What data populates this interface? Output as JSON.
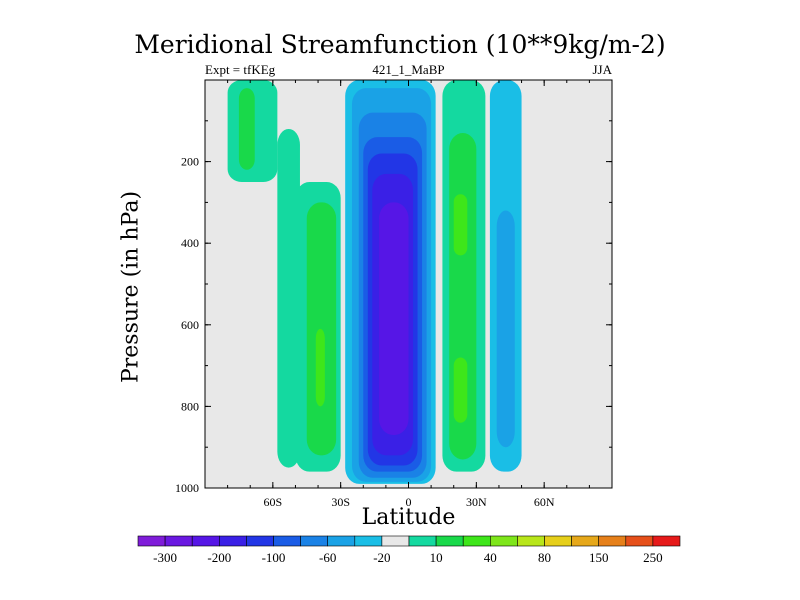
{
  "chart_data": {
    "type": "heatmap",
    "title": "Meridional Streamfunction (10**9kg/m-2)",
    "left_label": "Expt = tfKEg",
    "center_label": "421_1_MaBP",
    "right_label": "JJA",
    "xlabel": "Latitude",
    "ylabel": "Pressure (in hPa)",
    "xlim": [
      -90,
      90
    ],
    "ylim": [
      1000,
      0
    ],
    "x_ticks": [
      -60,
      -30,
      0,
      30,
      60
    ],
    "x_tick_labels": [
      "60S",
      "30S",
      "0",
      "30N",
      "60N"
    ],
    "y_ticks": [
      200,
      400,
      600,
      800,
      1000
    ],
    "y_tick_labels": [
      "200",
      "400",
      "600",
      "800",
      "1000"
    ],
    "background_color": "#e8e8e8",
    "colorbar": {
      "colors": [
        "#7f1cd9",
        "#6a18e1",
        "#5616e6",
        "#3a20e6",
        "#2236e6",
        "#1a5ce6",
        "#1a82e6",
        "#1aa2e6",
        "#1abee6",
        "#e8e8e8",
        "#14d9a0",
        "#19d94a",
        "#3ee61a",
        "#7ee61a",
        "#b8e61a",
        "#e6cf1a",
        "#e6a81a",
        "#e6801a",
        "#e6501a",
        "#e61a1a"
      ],
      "labels": [
        {
          "text": "-300",
          "index": 1
        },
        {
          "text": "-200",
          "index": 3
        },
        {
          "text": "-100",
          "index": 5
        },
        {
          "text": "-60",
          "index": 7
        },
        {
          "text": "-20",
          "index": 9
        },
        {
          "text": "10",
          "index": 11
        },
        {
          "text": "40",
          "index": 13
        },
        {
          "text": "80",
          "index": 15
        },
        {
          "text": "150",
          "index": 17
        },
        {
          "text": "250",
          "index": 19
        }
      ]
    },
    "cells": [
      {
        "lat": [
          -80,
          -58
        ],
        "p": [
          0,
          250
        ],
        "value": 15,
        "color": "#14d9a0"
      },
      {
        "lat": [
          -75,
          -68
        ],
        "p": [
          20,
          220
        ],
        "value": 25,
        "color": "#19d94a"
      },
      {
        "lat": [
          -58,
          -48
        ],
        "p": [
          120,
          950
        ],
        "value": 15,
        "color": "#14d9a0"
      },
      {
        "lat": [
          -50,
          -30
        ],
        "p": [
          250,
          960
        ],
        "value": 15,
        "color": "#14d9a0"
      },
      {
        "lat": [
          -45,
          -32
        ],
        "p": [
          300,
          920
        ],
        "value": 30,
        "color": "#19d94a"
      },
      {
        "lat": [
          -41,
          -37
        ],
        "p": [
          610,
          800
        ],
        "value": 50,
        "color": "#3ee61a"
      },
      {
        "lat": [
          -28,
          12
        ],
        "p": [
          0,
          990
        ],
        "value": -15,
        "color": "#1abee6"
      },
      {
        "lat": [
          -25,
          10
        ],
        "p": [
          20,
          985
        ],
        "value": -30,
        "color": "#1aa2e6"
      },
      {
        "lat": [
          -22,
          8
        ],
        "p": [
          80,
          975
        ],
        "value": -50,
        "color": "#1a82e6"
      },
      {
        "lat": [
          -20,
          6
        ],
        "p": [
          140,
          960
        ],
        "value": -80,
        "color": "#1a5ce6"
      },
      {
        "lat": [
          -18,
          4
        ],
        "p": [
          180,
          945
        ],
        "value": -120,
        "color": "#2236e6"
      },
      {
        "lat": [
          -16,
          2
        ],
        "p": [
          230,
          920
        ],
        "value": -180,
        "color": "#3a20e6"
      },
      {
        "lat": [
          -13,
          0
        ],
        "p": [
          300,
          870
        ],
        "value": -250,
        "color": "#5616e6"
      },
      {
        "lat": [
          15,
          34
        ],
        "p": [
          0,
          960
        ],
        "value": 15,
        "color": "#14d9a0"
      },
      {
        "lat": [
          18,
          30
        ],
        "p": [
          130,
          930
        ],
        "value": 30,
        "color": "#19d94a"
      },
      {
        "lat": [
          20,
          26
        ],
        "p": [
          280,
          430
        ],
        "value": 50,
        "color": "#3ee61a"
      },
      {
        "lat": [
          20,
          26
        ],
        "p": [
          680,
          840
        ],
        "value": 50,
        "color": "#3ee61a"
      },
      {
        "lat": [
          36,
          50
        ],
        "p": [
          0,
          960
        ],
        "value": -15,
        "color": "#1abee6"
      },
      {
        "lat": [
          39,
          47
        ],
        "p": [
          320,
          900
        ],
        "value": -30,
        "color": "#1aa2e6"
      }
    ]
  }
}
